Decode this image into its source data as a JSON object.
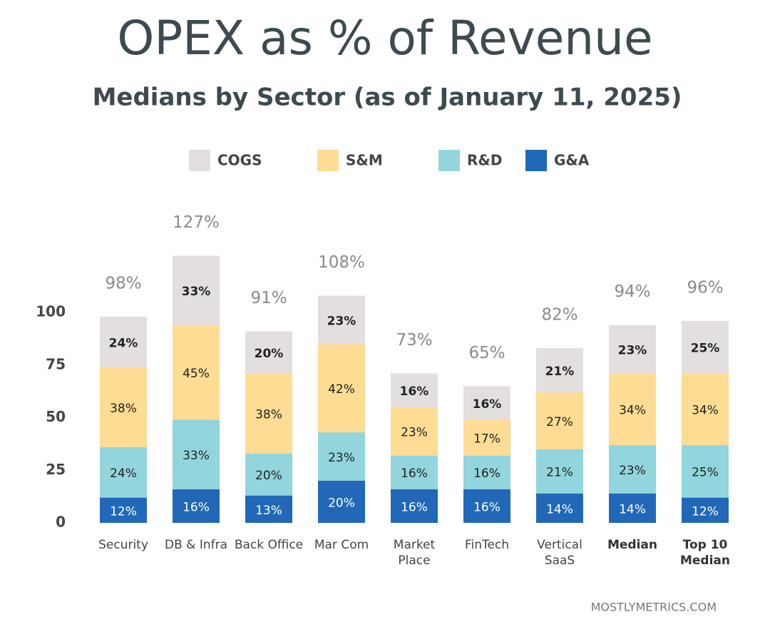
{
  "chart_data": {
    "type": "stacked_bar",
    "title": "OPEX as % of Revenue",
    "subtitle": "Medians by Sector (as of January 11, 2025)",
    "categories": [
      "Security",
      "DB & Infra",
      "Back Office",
      "Mar Com",
      "Market Place",
      "FinTech",
      "Vertical SaaS",
      "Median",
      "Top 10 Median"
    ],
    "series": [
      {
        "name": "G&A",
        "color": "#2169b8",
        "values": [
          12,
          16,
          13,
          20,
          16,
          16,
          14,
          14,
          12
        ],
        "value_labels": [
          "12%",
          "16%",
          "13%",
          "20%",
          "16%",
          "16%",
          "14%",
          "14%",
          "12%"
        ]
      },
      {
        "name": "R&D",
        "color": "#93d5dd",
        "values": [
          24,
          33,
          20,
          23,
          16,
          16,
          21,
          23,
          25
        ],
        "value_labels": [
          "24%",
          "33%",
          "20%",
          "23%",
          "16%",
          "16%",
          "21%",
          "23%",
          "25%"
        ]
      },
      {
        "name": "S&M",
        "color": "#fddc94",
        "values": [
          38,
          45,
          38,
          42,
          23,
          17,
          27,
          34,
          34
        ],
        "value_labels": [
          "38%",
          "45%",
          "38%",
          "42%",
          "23%",
          "17%",
          "27%",
          "34%",
          "34%"
        ]
      },
      {
        "name": "COGS",
        "color": "#e3dfdf",
        "values": [
          24,
          33,
          20,
          23,
          16,
          16,
          21,
          23,
          25
        ],
        "value_labels": [
          "24%",
          "33%",
          "20%",
          "23%",
          "16%",
          "16%",
          "21%",
          "23%",
          "25%"
        ]
      }
    ],
    "totals": [
      98,
      127,
      91,
      108,
      73,
      65,
      82,
      94,
      96
    ],
    "total_labels": [
      "98%",
      "127%",
      "91%",
      "108%",
      "73%",
      "65%",
      "82%",
      "94%",
      "96%"
    ],
    "ylim": [
      0,
      130
    ],
    "yticks": [
      0,
      25,
      50,
      75,
      100
    ],
    "source": "MOSTLYMETRICS.COM"
  }
}
